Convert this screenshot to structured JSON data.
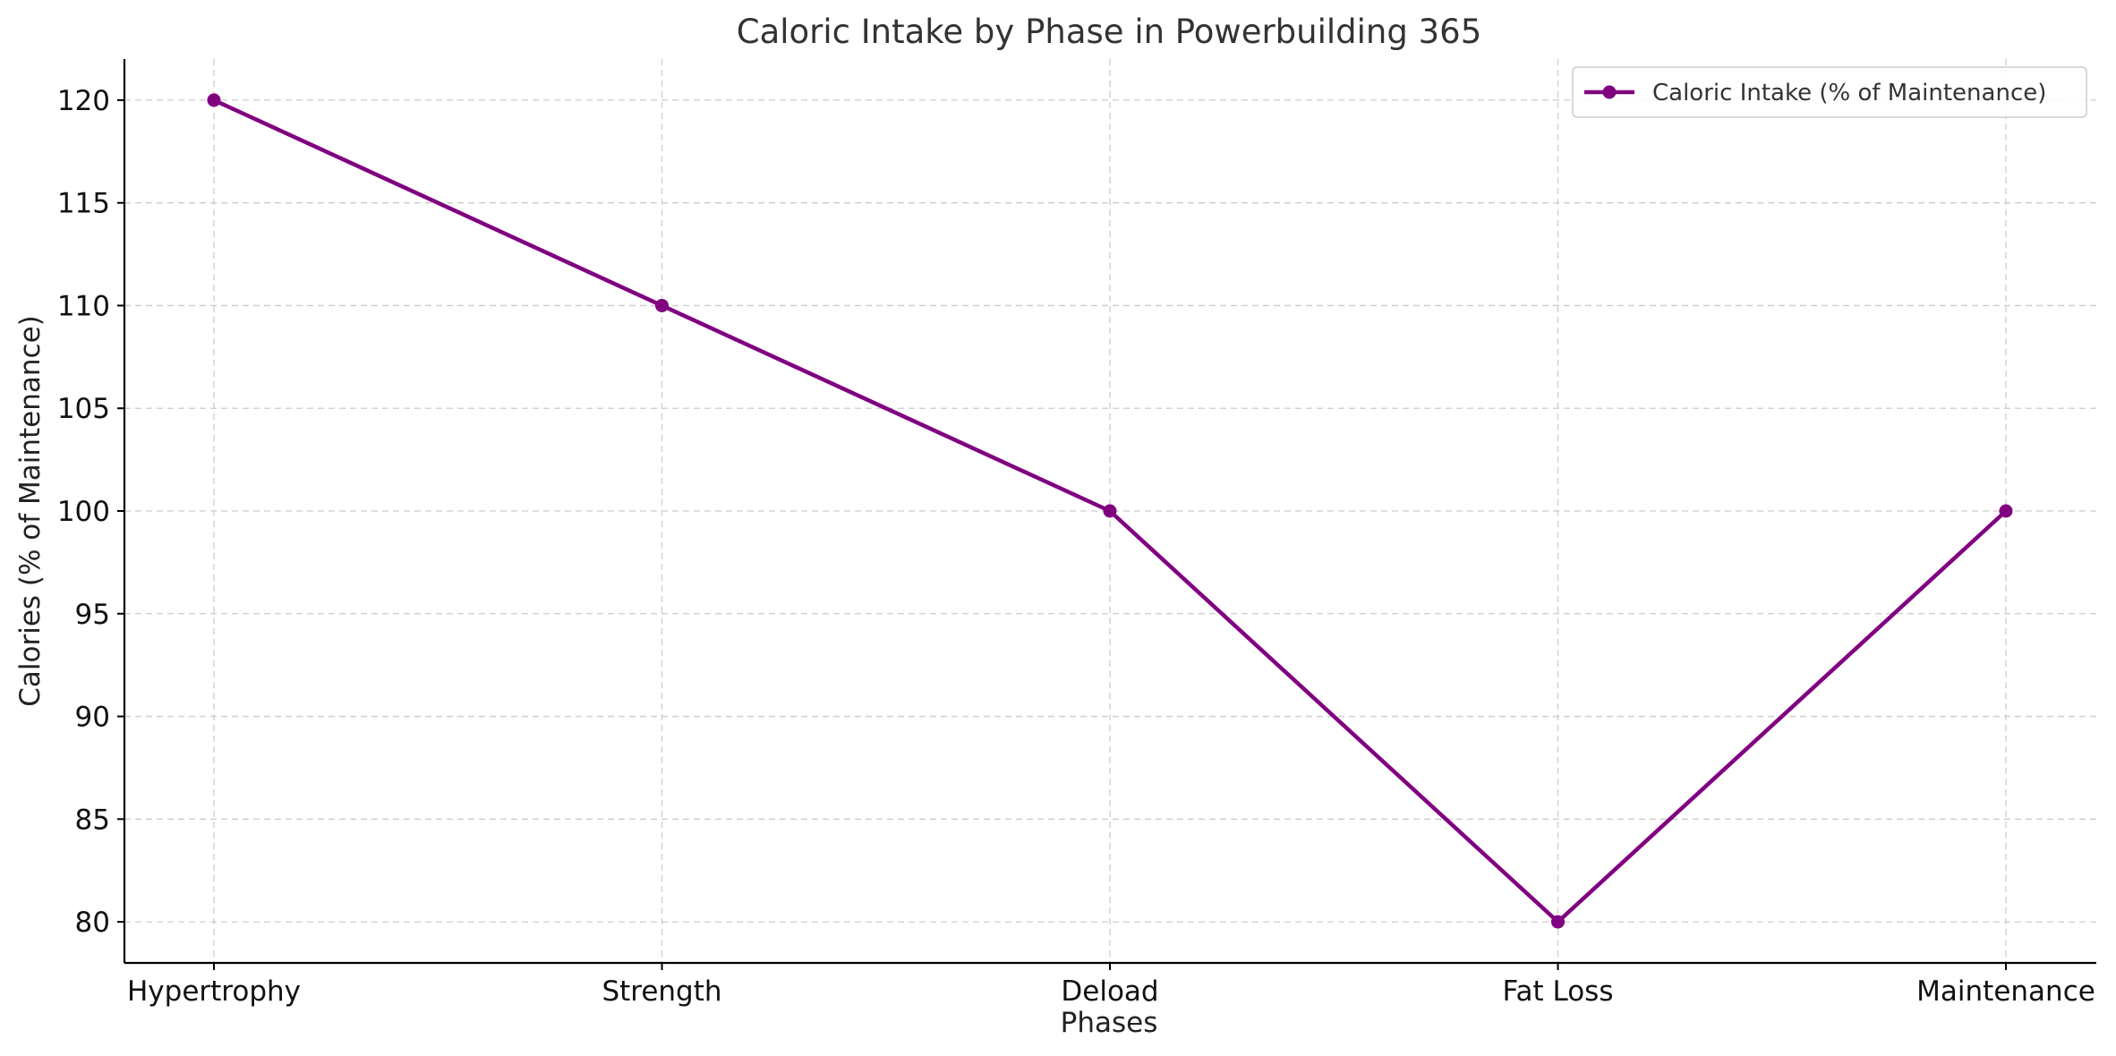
{
  "chart_data": {
    "type": "line",
    "title": "Caloric Intake by Phase in Powerbuilding 365",
    "xlabel": "Phases",
    "ylabel": "Calories (% of Maintenance)",
    "categories": [
      "Hypertrophy",
      "Strength",
      "Deload",
      "Fat Loss",
      "Maintenance"
    ],
    "series": [
      {
        "name": "Caloric Intake (% of Maintenance)",
        "values": [
          120,
          110,
          100,
          80,
          100
        ],
        "color": "#800080",
        "marker": "circle"
      }
    ],
    "ylim": [
      78,
      122
    ],
    "yticks": [
      80,
      85,
      90,
      95,
      100,
      105,
      110,
      115,
      120
    ],
    "grid": true,
    "legend_position": "top-right"
  }
}
